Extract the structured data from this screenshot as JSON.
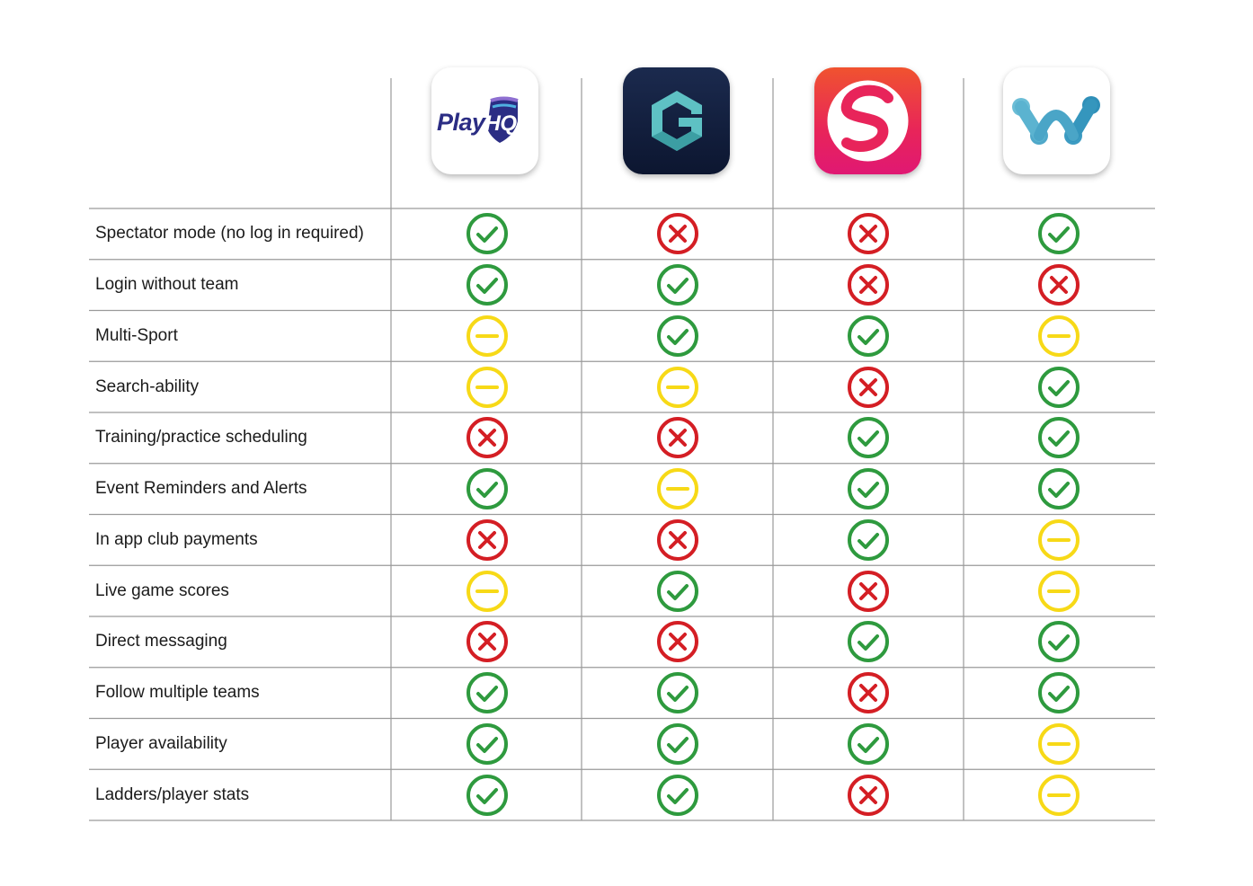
{
  "apps": [
    {
      "name_logo": "playhq-logo",
      "logo_text_play": "Play",
      "logo_text_hq": "HQ"
    },
    {
      "name_logo": "gameday-logo"
    },
    {
      "name_logo": "spond-logo"
    },
    {
      "name_logo": "w-app-logo"
    }
  ],
  "colors": {
    "check": "#2e9a3e",
    "cross": "#d41e24",
    "partial": "#f7d917",
    "grid_line": "#9a9a9a"
  },
  "rows": [
    {
      "label": "Spectator mode (no log in required)",
      "values": [
        "check",
        "cross",
        "cross",
        "check"
      ]
    },
    {
      "label": "Login without team",
      "values": [
        "check",
        "check",
        "cross",
        "cross"
      ]
    },
    {
      "label": "Multi-Sport",
      "values": [
        "partial",
        "check",
        "check",
        "partial"
      ]
    },
    {
      "label": "Search-ability",
      "values": [
        "partial",
        "partial",
        "cross",
        "check"
      ]
    },
    {
      "label": "Training/practice scheduling",
      "values": [
        "cross",
        "cross",
        "check",
        "check"
      ]
    },
    {
      "label": "Event Reminders and Alerts",
      "values": [
        "check",
        "partial",
        "check",
        "check"
      ]
    },
    {
      "label": "In app club payments",
      "values": [
        "cross",
        "cross",
        "check",
        "partial"
      ]
    },
    {
      "label": "Live game scores",
      "values": [
        "partial",
        "check",
        "cross",
        "partial"
      ]
    },
    {
      "label": "Direct messaging",
      "values": [
        "cross",
        "cross",
        "check",
        "check"
      ]
    },
    {
      "label": "Follow multiple teams",
      "values": [
        "check",
        "check",
        "cross",
        "check"
      ]
    },
    {
      "label": "Player availability",
      "values": [
        "check",
        "check",
        "check",
        "partial"
      ]
    },
    {
      "label": "Ladders/player stats",
      "values": [
        "check",
        "check",
        "cross",
        "partial"
      ]
    }
  ]
}
